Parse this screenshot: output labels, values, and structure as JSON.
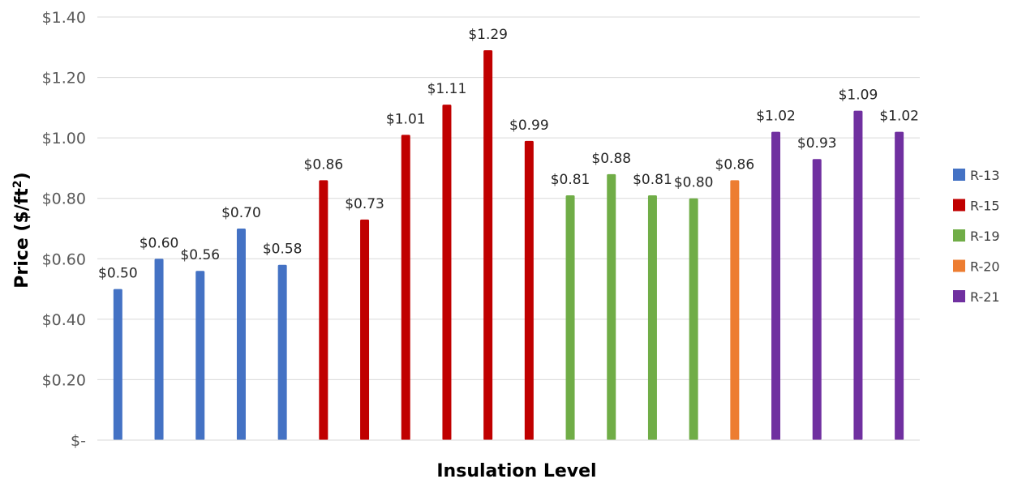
{
  "chart_data": {
    "type": "bar",
    "ylabel": "Price ($/ft²)",
    "ylabel_parts": {
      "main": "Price ($/ft",
      "sup": "2",
      "end": ")"
    },
    "xlabel": "Insulation Level",
    "ylim": [
      0,
      1.4
    ],
    "yticks": [
      {
        "value": 0,
        "label": "$-"
      },
      {
        "value": 0.2,
        "label": "$0.20"
      },
      {
        "value": 0.4,
        "label": "$0.40"
      },
      {
        "value": 0.6,
        "label": "$0.60"
      },
      {
        "value": 0.8,
        "label": "$0.80"
      },
      {
        "value": 1.0,
        "label": "$1.00"
      },
      {
        "value": 1.2,
        "label": "$1.20"
      },
      {
        "value": 1.4,
        "label": "$1.40"
      }
    ],
    "grid": true,
    "legend_position": "right",
    "series": [
      {
        "name": "R-13",
        "color": "#4472C4",
        "values": [
          0.5,
          0.6,
          0.56,
          0.7,
          0.58
        ],
        "labels": [
          "$0.50",
          "$0.60",
          "$0.56",
          "$0.70",
          "$0.58"
        ]
      },
      {
        "name": "R-15",
        "color": "#C00000",
        "values": [
          0.86,
          0.73,
          1.01,
          1.11,
          1.29,
          0.99
        ],
        "labels": [
          "$0.86",
          "$0.73",
          "$1.01",
          "$1.11",
          "$1.29",
          "$0.99"
        ]
      },
      {
        "name": "R-19",
        "color": "#70AD47",
        "values": [
          0.81,
          0.88,
          0.81,
          0.8
        ],
        "labels": [
          "$0.81",
          "$0.88",
          "$0.81",
          "$0.80"
        ]
      },
      {
        "name": "R-20",
        "color": "#ED7D31",
        "values": [
          0.86
        ],
        "labels": [
          "$0.86"
        ]
      },
      {
        "name": "R-21",
        "color": "#7030A0",
        "values": [
          1.02,
          0.93,
          1.09,
          1.02
        ],
        "labels": [
          "$1.02",
          "$0.93",
          "$1.09",
          "$1.02"
        ]
      }
    ]
  }
}
